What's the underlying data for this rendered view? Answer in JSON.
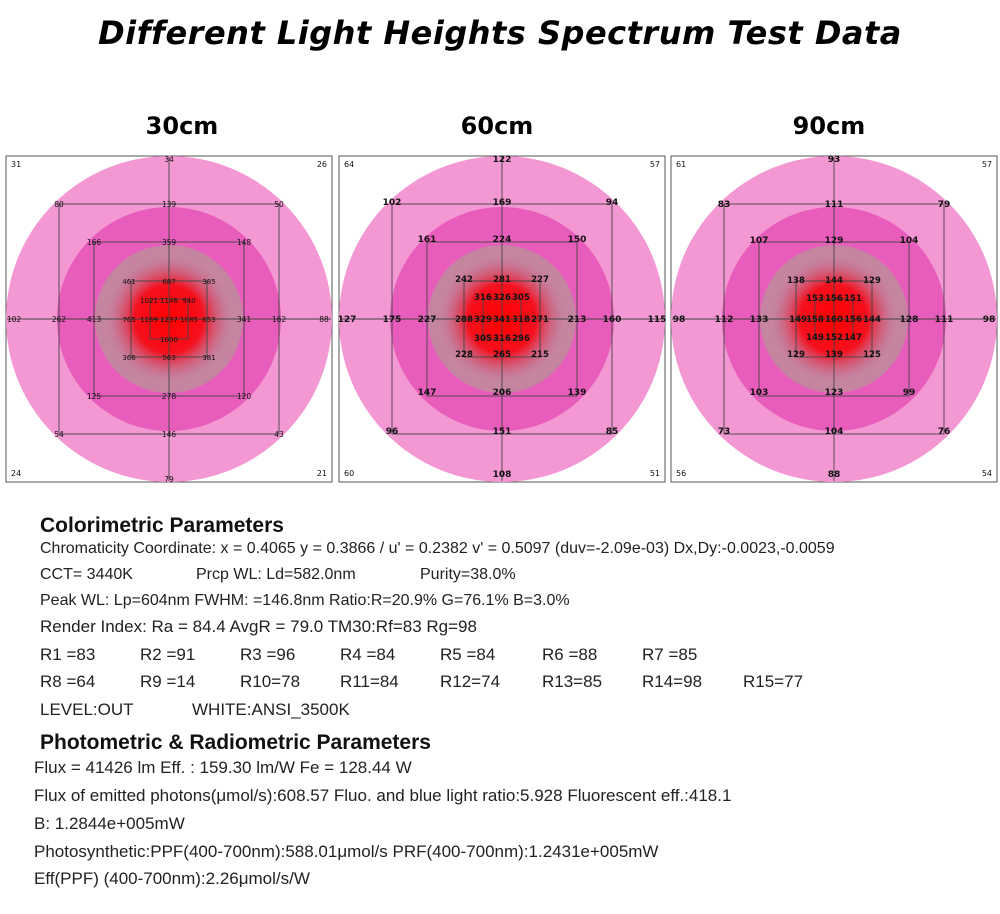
{
  "page": {
    "title": "Different Light Heights Spectrum Test Data"
  },
  "chart_data": [
    {
      "type": "heatmap",
      "title": "30cm",
      "corners": {
        "tl": "31",
        "tr": "26",
        "bl": "24",
        "br": "21"
      },
      "points": [
        {
          "label": "34",
          "gx": 0,
          "gy": -160
        },
        {
          "label": "79",
          "gx": 0,
          "gy": 160
        },
        {
          "label": "102",
          "gx": -155,
          "gy": 0
        },
        {
          "label": "88",
          "gx": 155,
          "gy": 0
        },
        {
          "label": "80",
          "gx": -110,
          "gy": -115
        },
        {
          "label": "139",
          "gx": 0,
          "gy": -115
        },
        {
          "label": "50",
          "gx": 110,
          "gy": -115
        },
        {
          "label": "262",
          "gx": -110,
          "gy": 0
        },
        {
          "label": "162",
          "gx": 110,
          "gy": 0
        },
        {
          "label": "54",
          "gx": -110,
          "gy": 115
        },
        {
          "label": "146",
          "gx": 0,
          "gy": 115
        },
        {
          "label": "43",
          "gx": 110,
          "gy": 115
        },
        {
          "label": "166",
          "gx": -75,
          "gy": -77
        },
        {
          "label": "359",
          "gx": 0,
          "gy": -77
        },
        {
          "label": "148",
          "gx": 75,
          "gy": -77
        },
        {
          "label": "413",
          "gx": -75,
          "gy": 0
        },
        {
          "label": "341",
          "gx": 75,
          "gy": 0
        },
        {
          "label": "125",
          "gx": -75,
          "gy": 77
        },
        {
          "label": "278",
          "gx": 0,
          "gy": 77
        },
        {
          "label": "120",
          "gx": 75,
          "gy": 77
        },
        {
          "label": "461",
          "gx": -40,
          "gy": -38
        },
        {
          "label": "687",
          "gx": 0,
          "gy": -38
        },
        {
          "label": "385",
          "gx": 40,
          "gy": -38
        },
        {
          "label": "765",
          "gx": -40,
          "gy": 0
        },
        {
          "label": "653",
          "gx": 40,
          "gy": 0
        },
        {
          "label": "366",
          "gx": -40,
          "gy": 38
        },
        {
          "label": "563",
          "gx": 0,
          "gy": 38
        },
        {
          "label": "381",
          "gx": 40,
          "gy": 38
        },
        {
          "label": "1021",
          "gx": -20,
          "gy": -19
        },
        {
          "label": "1146",
          "gx": 0,
          "gy": -19
        },
        {
          "label": "940",
          "gx": 20,
          "gy": -19
        },
        {
          "label": "1169",
          "gx": -20,
          "gy": 0
        },
        {
          "label": "1237",
          "gx": 0,
          "gy": 0
        },
        {
          "label": "1085",
          "gx": 20,
          "gy": 0
        },
        {
          "label": "1000",
          "gx": 0,
          "gy": 20
        }
      ]
    },
    {
      "type": "heatmap",
      "title": "60cm",
      "corners": {
        "tl": "64",
        "tr": "57",
        "bl": "60",
        "br": "51"
      },
      "points": [
        {
          "label": "122",
          "gx": 0,
          "gy": -160
        },
        {
          "label": "108",
          "gx": 0,
          "gy": 155
        },
        {
          "label": "127",
          "gx": -155,
          "gy": 0
        },
        {
          "label": "115",
          "gx": 155,
          "gy": 0
        },
        {
          "label": "102",
          "gx": -110,
          "gy": -117
        },
        {
          "label": "169",
          "gx": 0,
          "gy": -117
        },
        {
          "label": "94",
          "gx": 110,
          "gy": -117
        },
        {
          "label": "175",
          "gx": -110,
          "gy": 0
        },
        {
          "label": "160",
          "gx": 110,
          "gy": 0
        },
        {
          "label": "96",
          "gx": -110,
          "gy": 112
        },
        {
          "label": "151",
          "gx": 0,
          "gy": 112
        },
        {
          "label": "85",
          "gx": 110,
          "gy": 112
        },
        {
          "label": "161",
          "gx": -75,
          "gy": -80
        },
        {
          "label": "224",
          "gx": 0,
          "gy": -80
        },
        {
          "label": "150",
          "gx": 75,
          "gy": -80
        },
        {
          "label": "227",
          "gx": -75,
          "gy": 0
        },
        {
          "label": "213",
          "gx": 75,
          "gy": 0
        },
        {
          "label": "147",
          "gx": -75,
          "gy": 73
        },
        {
          "label": "206",
          "gx": 0,
          "gy": 73
        },
        {
          "label": "139",
          "gx": 75,
          "gy": 73
        },
        {
          "label": "242",
          "gx": -38,
          "gy": -40
        },
        {
          "label": "281",
          "gx": 0,
          "gy": -40
        },
        {
          "label": "227",
          "gx": 38,
          "gy": -40
        },
        {
          "label": "288",
          "gx": -38,
          "gy": 0
        },
        {
          "label": "271",
          "gx": 38,
          "gy": 0
        },
        {
          "label": "228",
          "gx": -38,
          "gy": 35
        },
        {
          "label": "265",
          "gx": 0,
          "gy": 35
        },
        {
          "label": "215",
          "gx": 38,
          "gy": 35
        },
        {
          "label": "316",
          "gx": -19,
          "gy": -22
        },
        {
          "label": "326",
          "gx": 0,
          "gy": -22
        },
        {
          "label": "305",
          "gx": 19,
          "gy": -22
        },
        {
          "label": "329",
          "gx": -19,
          "gy": 0
        },
        {
          "label": "341",
          "gx": 0,
          "gy": 0
        },
        {
          "label": "318",
          "gx": 19,
          "gy": 0
        },
        {
          "label": "305",
          "gx": -19,
          "gy": 19
        },
        {
          "label": "316",
          "gx": 0,
          "gy": 19
        },
        {
          "label": "296",
          "gx": 19,
          "gy": 19
        }
      ]
    },
    {
      "type": "heatmap",
      "title": "90cm",
      "corners": {
        "tl": "61",
        "tr": "57",
        "bl": "56",
        "br": "54"
      },
      "points": [
        {
          "label": "93",
          "gx": 0,
          "gy": -160
        },
        {
          "label": "88",
          "gx": 0,
          "gy": 155
        },
        {
          "label": "98",
          "gx": -155,
          "gy": 0
        },
        {
          "label": "98",
          "gx": 155,
          "gy": 0
        },
        {
          "label": "83",
          "gx": -110,
          "gy": -115
        },
        {
          "label": "111",
          "gx": 0,
          "gy": -115
        },
        {
          "label": "79",
          "gx": 110,
          "gy": -115
        },
        {
          "label": "112",
          "gx": -110,
          "gy": 0
        },
        {
          "label": "111",
          "gx": 110,
          "gy": 0
        },
        {
          "label": "73",
          "gx": -110,
          "gy": 112
        },
        {
          "label": "104",
          "gx": 0,
          "gy": 112
        },
        {
          "label": "76",
          "gx": 110,
          "gy": 112
        },
        {
          "label": "107",
          "gx": -75,
          "gy": -79
        },
        {
          "label": "129",
          "gx": 0,
          "gy": -79
        },
        {
          "label": "104",
          "gx": 75,
          "gy": -79
        },
        {
          "label": "133",
          "gx": -75,
          "gy": 0
        },
        {
          "label": "128",
          "gx": 75,
          "gy": 0
        },
        {
          "label": "103",
          "gx": -75,
          "gy": 73
        },
        {
          "label": "123",
          "gx": 0,
          "gy": 73
        },
        {
          "label": "99",
          "gx": 75,
          "gy": 73
        },
        {
          "label": "138",
          "gx": -38,
          "gy": -39
        },
        {
          "label": "144",
          "gx": 0,
          "gy": -39
        },
        {
          "label": "129",
          "gx": 38,
          "gy": -39
        },
        {
          "label": "149",
          "gx": -36,
          "gy": 0
        },
        {
          "label": "144",
          "gx": 38,
          "gy": 0
        },
        {
          "label": "129",
          "gx": -38,
          "gy": 35
        },
        {
          "label": "139",
          "gx": 0,
          "gy": 35
        },
        {
          "label": "125",
          "gx": 38,
          "gy": 35
        },
        {
          "label": "153",
          "gx": -19,
          "gy": -21
        },
        {
          "label": "156",
          "gx": 0,
          "gy": -21
        },
        {
          "label": "151",
          "gx": 19,
          "gy": -21
        },
        {
          "label": "158",
          "gx": -19,
          "gy": 0
        },
        {
          "label": "160",
          "gx": 0,
          "gy": 0
        },
        {
          "label": "156",
          "gx": 19,
          "gy": 0
        },
        {
          "label": "149",
          "gx": -19,
          "gy": 18
        },
        {
          "label": "152",
          "gx": 0,
          "gy": 18
        },
        {
          "label": "147",
          "gx": 19,
          "gy": 18
        }
      ]
    }
  ],
  "colorimetric": {
    "heading": "Colorimetric Parameters",
    "line1": "Chromaticity Coordinate: x = 0.4065 y = 0.3866 / u' = 0.2382 v' = 0.5097 (duv=-2.09e-03)   Dx,Dy:-0.0023,-0.0059",
    "cct": "CCT=  3440K",
    "prcp": "Prcp WL:    Ld=582.0nm",
    "purity": "Purity=38.0%",
    "peak": "Peak WL:  Lp=604nm  FWHM:   =146.8nm  Ratio:R=20.9% G=76.1% B=3.0%",
    "render": "Render Index: Ra = 84.4 AvgR = 79.0 TM30:Rf=83 Rg=98",
    "r_row1": [
      "R1 =83",
      "R2 =91",
      "R3 =96",
      "R4 =84",
      "R5 =84",
      "R6 =88",
      "R7 =85"
    ],
    "r_row2": [
      "R8 =64",
      "R9 =14",
      "R10=78",
      "R11=84",
      "R12=74",
      "R13=85",
      "R14=98",
      "R15=77"
    ],
    "level": "LEVEL:OUT",
    "white": "WHITE:ANSI_3500K"
  },
  "photometric": {
    "heading": "Photometric & Radiometric Parameters",
    "flux": "Flux  = 41426 lm    Eff. : 159.30 lm/W   Fe  = 128.44 W",
    "photons": "Flux of emitted photons(μmol/s):608.57     Fluo. and blue light ratio:5.928     Fluorescent eff.:418.1",
    "b": "B: 1.2844e+005mW",
    "ppf": "Photosynthetic:PPF(400-700nm):588.01μmol/s PRF(400-700nm):1.2431e+005mW",
    "eff": "Eff(PPF) (400-700nm):2.26μmol/s/W"
  }
}
